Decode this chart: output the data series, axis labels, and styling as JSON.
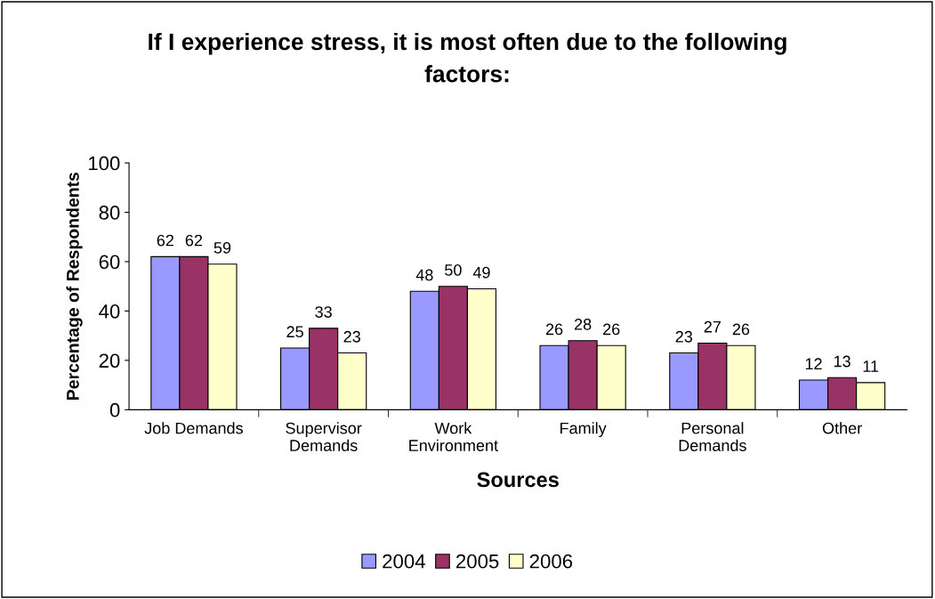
{
  "chart_data": {
    "type": "bar",
    "title": "If I experience stress, it is most often due to the following\nfactors:",
    "xlabel": "Sources",
    "ylabel": "Percentage of Respondents",
    "categories": [
      "Job Demands",
      "Supervisor\nDemands",
      "Work\nEnvironment",
      "Family",
      "Personal\nDemands",
      "Other"
    ],
    "series": [
      {
        "name": "2004",
        "color": "#9999ff",
        "values": [
          62,
          25,
          48,
          26,
          23,
          12
        ]
      },
      {
        "name": "2005",
        "color": "#993366",
        "values": [
          62,
          33,
          50,
          28,
          27,
          13
        ]
      },
      {
        "name": "2006",
        "color": "#ffffcc",
        "values": [
          59,
          23,
          49,
          26,
          26,
          11
        ]
      }
    ],
    "ylim": [
      0,
      100
    ],
    "yticks": [
      0,
      20,
      40,
      60,
      80,
      100
    ],
    "grid": false,
    "legend": "bottom",
    "data_labels": true
  }
}
